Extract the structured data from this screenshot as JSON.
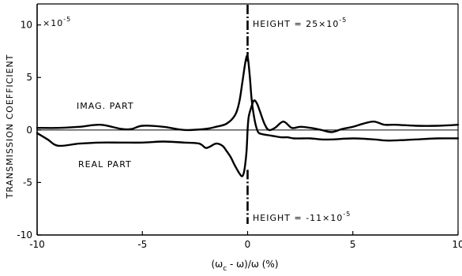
{
  "chart_data": {
    "type": "line",
    "title": "",
    "xlabel_parts": {
      "open": "(ω",
      "sub_c": "c",
      "rest": " - ω)/ω (%)"
    },
    "ylabel": "TRANSMISSION COEFFICIENT",
    "y_multiplier": {
      "base": "×10",
      "exp": "-5"
    },
    "xlim": [
      -10,
      10
    ],
    "ylim": [
      -10,
      12
    ],
    "xticks": [
      -10,
      -5,
      0,
      5,
      10
    ],
    "yticks": [
      -10,
      -5,
      0,
      5,
      10
    ],
    "xtick_labels": [
      "-10",
      "-5",
      "0",
      "5",
      "10"
    ],
    "ytick_labels": [
      "-10",
      "-5",
      "0",
      "5",
      "10"
    ],
    "series": [
      {
        "key": "imag",
        "x": [
          -10,
          -9,
          -8,
          -7,
          -6,
          -5.5,
          -5,
          -4,
          -3,
          -2,
          -1.5,
          -1,
          -0.6,
          -0.4,
          -0.25,
          -0.1,
          0,
          0.1,
          0.2,
          0.35,
          0.5,
          0.7,
          1,
          1.3,
          1.6,
          1.9,
          2.2,
          2.6,
          3,
          3.5,
          4,
          5,
          6,
          6.5,
          7,
          8,
          9,
          10
        ],
        "y": [
          0.2,
          0.2,
          0.3,
          0.5,
          0.1,
          0.1,
          0.4,
          0.3,
          0.0,
          0.1,
          0.3,
          0.6,
          1.4,
          2.6,
          4.5,
          6.5,
          7.0,
          5.2,
          2.8,
          0.8,
          -0.2,
          -0.4,
          -0.5,
          -0.6,
          -0.7,
          -0.7,
          -0.8,
          -0.8,
          -0.8,
          -0.9,
          -0.9,
          -0.8,
          -0.9,
          -1.0,
          -1.0,
          -0.9,
          -0.8,
          -0.8
        ]
      },
      {
        "key": "real",
        "x": [
          -10,
          -9.5,
          -9,
          -8,
          -7,
          -6,
          -5,
          -4,
          -3,
          -2.3,
          -2,
          -1.8,
          -1.5,
          -1.2,
          -1,
          -0.8,
          -0.6,
          -0.4,
          -0.25,
          -0.15,
          -0.05,
          0,
          0.05,
          0.15,
          0.3,
          0.45,
          0.6,
          0.8,
          1,
          1.3,
          1.7,
          2.1,
          2.5,
          3,
          3.5,
          4,
          4.5,
          5,
          5.5,
          6,
          6.5,
          7,
          8,
          9,
          10
        ],
        "y": [
          -0.3,
          -0.9,
          -1.5,
          -1.3,
          -1.2,
          -1.2,
          -1.2,
          -1.1,
          -1.2,
          -1.3,
          -1.7,
          -1.6,
          -1.3,
          -1.5,
          -2.0,
          -2.6,
          -3.4,
          -4.1,
          -4.4,
          -3.8,
          -2.0,
          0.0,
          1.2,
          2.0,
          2.8,
          2.5,
          1.7,
          0.6,
          0.0,
          0.2,
          0.8,
          0.2,
          0.3,
          0.2,
          0.0,
          -0.2,
          0.1,
          0.3,
          0.6,
          0.8,
          0.5,
          0.5,
          0.4,
          0.4,
          0.5
        ]
      }
    ],
    "annotations": {
      "imag_label": "IMAG. PART",
      "real_label": "REAL PART",
      "height_top": {
        "prefix": "HEIGHT = 25",
        "base": "×10",
        "exp": "-5"
      },
      "height_bottom": {
        "prefix": "HEIGHT = -11",
        "base": "×10",
        "exp": "-5"
      }
    },
    "grid": false,
    "legend": "none"
  }
}
